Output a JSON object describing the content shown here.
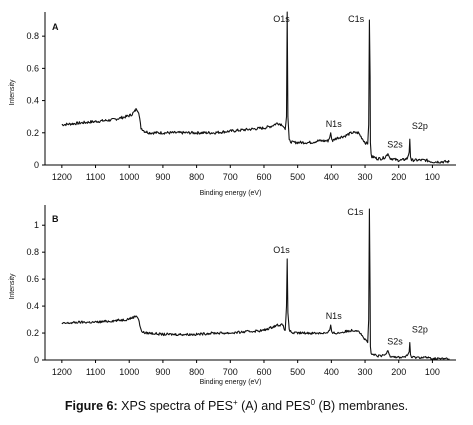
{
  "chart_data": [
    {
      "type": "line",
      "panel_label": "A",
      "xlabel": "Binding energy (eV)",
      "ylabel": "Intensity",
      "xlim": [
        1250,
        30
      ],
      "ylim": [
        0,
        0.95
      ],
      "x_ticks": [
        1200,
        1100,
        1000,
        900,
        800,
        700,
        600,
        500,
        400,
        300,
        200,
        100
      ],
      "y_ticks": [
        0,
        0.2,
        0.4,
        0.6,
        0.8
      ],
      "y_tick_labels": [
        "0",
        "0.2",
        "0.4",
        "0.6",
        "0.8"
      ],
      "x": [
        1200,
        1150,
        1100,
        1050,
        1010,
        995,
        985,
        978,
        972,
        965,
        955,
        940,
        900,
        850,
        800,
        750,
        700,
        650,
        600,
        580,
        560,
        545,
        537,
        533,
        531,
        529,
        525,
        515,
        500,
        480,
        460,
        440,
        420,
        410,
        405,
        402,
        399,
        396,
        390,
        380,
        360,
        340,
        320,
        300,
        292,
        289,
        287,
        285,
        284,
        282,
        280,
        275,
        265,
        250,
        240,
        232,
        228,
        225,
        220,
        205,
        190,
        175,
        169,
        167,
        165,
        162,
        155,
        140,
        120,
        100,
        80,
        60,
        50
      ],
      "y": [
        0.25,
        0.26,
        0.27,
        0.28,
        0.3,
        0.31,
        0.33,
        0.35,
        0.33,
        0.23,
        0.21,
        0.2,
        0.2,
        0.2,
        0.2,
        0.2,
        0.21,
        0.22,
        0.23,
        0.24,
        0.26,
        0.25,
        0.22,
        0.3,
        0.95,
        0.3,
        0.15,
        0.14,
        0.14,
        0.14,
        0.14,
        0.15,
        0.15,
        0.15,
        0.17,
        0.2,
        0.16,
        0.15,
        0.16,
        0.17,
        0.18,
        0.2,
        0.2,
        0.14,
        0.13,
        0.25,
        0.9,
        0.55,
        0.14,
        0.07,
        0.05,
        0.05,
        0.04,
        0.04,
        0.05,
        0.07,
        0.05,
        0.04,
        0.04,
        0.03,
        0.03,
        0.04,
        0.08,
        0.16,
        0.05,
        0.03,
        0.03,
        0.03,
        0.03,
        0.02,
        0.02,
        0.02,
        0.02
      ],
      "annotations": [
        {
          "text": "O1s",
          "x": 531,
          "y": 0.95
        },
        {
          "text": "C1s",
          "x": 285,
          "y": 0.9
        },
        {
          "text": "N1s",
          "x": 399,
          "y": 0.2
        },
        {
          "text": "S2s",
          "x": 228,
          "y": 0.07
        },
        {
          "text": "S2p",
          "x": 167,
          "y": 0.16
        }
      ]
    },
    {
      "type": "line",
      "panel_label": "B",
      "xlabel": "Binding energy (eV)",
      "ylabel": "Intensity",
      "xlim": [
        1250,
        30
      ],
      "ylim": [
        0,
        1.15
      ],
      "x_ticks": [
        1200,
        1100,
        1000,
        900,
        800,
        700,
        600,
        500,
        400,
        300,
        200,
        100
      ],
      "y_ticks": [
        0,
        0.2,
        0.4,
        0.6,
        0.8,
        1.0
      ],
      "y_tick_labels": [
        "0",
        "0.2",
        "0.4",
        "0.6",
        "0.8",
        "1"
      ],
      "x": [
        1200,
        1150,
        1100,
        1050,
        1010,
        995,
        985,
        978,
        972,
        965,
        955,
        940,
        900,
        850,
        800,
        750,
        700,
        650,
        600,
        580,
        560,
        545,
        537,
        533,
        531,
        529,
        525,
        515,
        500,
        480,
        460,
        440,
        420,
        410,
        405,
        402,
        399,
        396,
        390,
        380,
        360,
        340,
        320,
        300,
        292,
        289,
        287,
        285,
        284,
        282,
        280,
        275,
        265,
        250,
        240,
        232,
        228,
        225,
        220,
        205,
        190,
        175,
        169,
        167,
        165,
        162,
        155,
        140,
        120,
        100,
        80,
        60,
        50
      ],
      "y": [
        0.27,
        0.28,
        0.28,
        0.29,
        0.3,
        0.31,
        0.32,
        0.33,
        0.3,
        0.22,
        0.2,
        0.2,
        0.19,
        0.19,
        0.19,
        0.2,
        0.2,
        0.21,
        0.22,
        0.24,
        0.26,
        0.26,
        0.22,
        0.4,
        0.75,
        0.35,
        0.22,
        0.2,
        0.2,
        0.2,
        0.2,
        0.2,
        0.2,
        0.2,
        0.22,
        0.26,
        0.21,
        0.2,
        0.2,
        0.2,
        0.21,
        0.22,
        0.22,
        0.15,
        0.13,
        0.3,
        1.12,
        0.5,
        0.1,
        0.05,
        0.04,
        0.04,
        0.03,
        0.03,
        0.04,
        0.07,
        0.04,
        0.03,
        0.03,
        0.02,
        0.02,
        0.03,
        0.06,
        0.13,
        0.04,
        0.02,
        0.02,
        0.02,
        0.02,
        0.01,
        0.01,
        0.01,
        0.01
      ],
      "annotations": [
        {
          "text": "O1s",
          "x": 531,
          "y": 0.75
        },
        {
          "text": "C1s",
          "x": 287,
          "y": 1.12
        },
        {
          "text": "N1s",
          "x": 399,
          "y": 0.26
        },
        {
          "text": "S2s",
          "x": 228,
          "y": 0.07
        },
        {
          "text": "S2p",
          "x": 167,
          "y": 0.13
        }
      ]
    }
  ],
  "caption": {
    "bold_prefix": "Figure 6:",
    "text_1": " XPS spectra of PES",
    "sup_1": "+",
    "text_2": " (A) and PES",
    "sup_2": "0",
    "text_3": " (B) membranes."
  }
}
